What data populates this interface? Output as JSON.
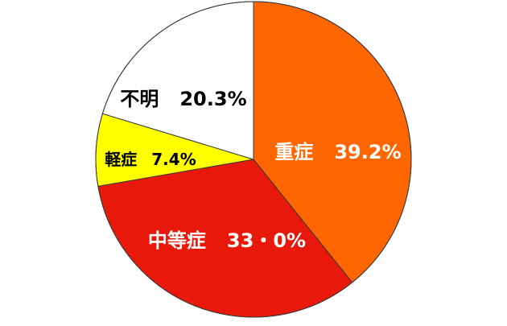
{
  "chart_data": {
    "type": "pie",
    "start": "12 o'clock",
    "direction": "clockwise",
    "slices": [
      {
        "key": "severe",
        "label": "重症",
        "value_text": "39.2%",
        "value": 39.2,
        "color": "#FF6600",
        "text_color": "#ffffff"
      },
      {
        "key": "moderate",
        "label": "中等症",
        "value_text": "33・0%",
        "value": 33.0,
        "color": "#E8190A",
        "text_color": "#ffffff"
      },
      {
        "key": "mild",
        "label": "軽症",
        "value_text": "7.4%",
        "value": 7.4,
        "color": "#FFFF00",
        "text_color": "#000000"
      },
      {
        "key": "unknown",
        "label": "不明",
        "value_text": "20.3%",
        "value": 20.3,
        "color": "#FFFFFF",
        "text_color": "#000000"
      }
    ],
    "slice_border_color": "#3a3a3a"
  }
}
